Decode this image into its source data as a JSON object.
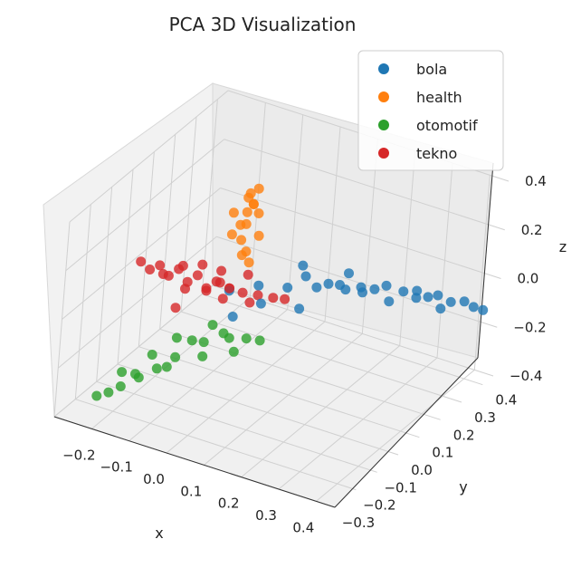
{
  "chart_data": {
    "type": "scatter",
    "projection": "3d",
    "title": "PCA 3D Visualization",
    "xlabel": "x",
    "ylabel": "y",
    "zlabel": "z",
    "xlim": [
      -0.3,
      0.45
    ],
    "ylim": [
      -0.3,
      0.45
    ],
    "zlim": [
      -0.4,
      0.4
    ],
    "x_ticks": [
      "−0.2",
      "−0.1",
      "0.0",
      "0.1",
      "0.2",
      "0.3",
      "0.4"
    ],
    "y_ticks": [
      "−0.3",
      "−0.2",
      "−0.1",
      "0.0",
      "0.1",
      "0.2",
      "0.3",
      "0.4"
    ],
    "z_ticks": [
      "−0.4",
      "−0.2",
      "0.0",
      "0.2",
      "0.4"
    ],
    "grid": true,
    "legend": "top-right",
    "series": [
      {
        "name": "bola",
        "color": "#1f77b4",
        "points": [
          [
            -0.05,
            0.05,
            -0.01
          ],
          [
            0.0,
            0.1,
            0.0
          ],
          [
            0.05,
            0.15,
            -0.02
          ],
          [
            0.1,
            0.2,
            -0.03
          ],
          [
            0.15,
            0.25,
            -0.05
          ],
          [
            0.2,
            0.3,
            -0.06
          ],
          [
            0.25,
            0.35,
            -0.08
          ],
          [
            0.3,
            0.38,
            -0.1
          ],
          [
            0.35,
            0.4,
            -0.11
          ],
          [
            0.4,
            0.42,
            -0.12
          ],
          [
            0.42,
            0.43,
            -0.13
          ],
          [
            0.38,
            0.41,
            -0.1
          ],
          [
            0.32,
            0.39,
            -0.09
          ],
          [
            0.28,
            0.36,
            -0.07
          ],
          [
            0.22,
            0.32,
            -0.05
          ],
          [
            0.18,
            0.27,
            -0.04
          ],
          [
            0.12,
            0.22,
            -0.02
          ],
          [
            0.08,
            0.18,
            0.02
          ],
          [
            0.06,
            0.2,
            0.04
          ],
          [
            0.14,
            0.28,
            -0.01
          ],
          [
            0.24,
            0.3,
            -0.09
          ],
          [
            0.34,
            0.37,
            -0.12
          ],
          [
            0.02,
            0.08,
            -0.05
          ],
          [
            -0.02,
            0.02,
            -0.08
          ],
          [
            0.1,
            0.12,
            -0.06
          ],
          [
            0.2,
            0.24,
            -0.03
          ],
          [
            0.3,
            0.32,
            -0.06
          ],
          [
            0.16,
            0.2,
            0.01
          ]
        ]
      },
      {
        "name": "health",
        "color": "#ff7f0e",
        "points": [
          [
            -0.05,
            0.1,
            0.1
          ],
          [
            -0.06,
            0.11,
            0.15
          ],
          [
            -0.07,
            0.12,
            0.2
          ],
          [
            -0.06,
            0.13,
            0.25
          ],
          [
            -0.05,
            0.14,
            0.28
          ],
          [
            -0.04,
            0.12,
            0.3
          ],
          [
            -0.03,
            0.13,
            0.26
          ],
          [
            -0.05,
            0.11,
            0.22
          ],
          [
            -0.08,
            0.1,
            0.17
          ],
          [
            -0.04,
            0.1,
            0.12
          ],
          [
            -0.06,
            0.14,
            0.32
          ],
          [
            -0.07,
            0.15,
            0.29
          ],
          [
            -0.02,
            0.12,
            0.18
          ],
          [
            -0.09,
            0.12,
            0.24
          ],
          [
            -0.05,
            0.16,
            0.33
          ],
          [
            -0.03,
            0.1,
            0.08
          ]
        ]
      },
      {
        "name": "otomotif",
        "color": "#2ca02c",
        "points": [
          [
            -0.05,
            -0.02,
            -0.1
          ],
          [
            -0.08,
            -0.06,
            -0.15
          ],
          [
            -0.1,
            -0.1,
            -0.2
          ],
          [
            -0.13,
            -0.13,
            -0.24
          ],
          [
            -0.16,
            -0.16,
            -0.27
          ],
          [
            -0.19,
            -0.19,
            -0.3
          ],
          [
            -0.21,
            -0.21,
            -0.32
          ],
          [
            -0.23,
            -0.23,
            -0.33
          ],
          [
            -0.02,
            -0.02,
            -0.12
          ],
          [
            0.02,
            0.02,
            -0.15
          ],
          [
            0.04,
            0.05,
            -0.17
          ],
          [
            0.0,
            0.0,
            -0.2
          ],
          [
            -0.06,
            -0.04,
            -0.22
          ],
          [
            -0.12,
            -0.1,
            -0.25
          ],
          [
            -0.18,
            -0.14,
            -0.28
          ],
          [
            -0.15,
            -0.12,
            -0.2
          ],
          [
            -0.11,
            -0.08,
            -0.14
          ],
          [
            -0.2,
            -0.17,
            -0.26
          ],
          [
            -0.03,
            0.03,
            -0.18
          ],
          [
            -0.08,
            0.0,
            -0.2
          ]
        ]
      },
      {
        "name": "tekno",
        "color": "#d62728",
        "points": [
          [
            -0.05,
            0.05,
            0.0
          ],
          [
            -0.08,
            0.04,
            0.02
          ],
          [
            -0.12,
            0.02,
            0.04
          ],
          [
            -0.16,
            0.0,
            0.06
          ],
          [
            -0.2,
            -0.02,
            0.07
          ],
          [
            -0.24,
            -0.04,
            0.08
          ],
          [
            -0.22,
            -0.03,
            0.05
          ],
          [
            -0.18,
            -0.01,
            0.03
          ],
          [
            -0.14,
            0.01,
            0.01
          ],
          [
            -0.1,
            0.03,
            -0.01
          ],
          [
            -0.06,
            0.07,
            -0.02
          ],
          [
            -0.03,
            0.08,
            -0.03
          ],
          [
            0.0,
            0.1,
            -0.04
          ],
          [
            0.03,
            0.12,
            -0.05
          ],
          [
            0.05,
            0.14,
            -0.06
          ],
          [
            -0.02,
            0.1,
            -0.08
          ],
          [
            -0.07,
            0.06,
            -0.06
          ],
          [
            -0.11,
            0.05,
            -0.04
          ],
          [
            -0.15,
            0.02,
            -0.03
          ],
          [
            -0.04,
            0.12,
            0.01
          ],
          [
            -0.09,
            0.08,
            0.03
          ],
          [
            -0.13,
            0.06,
            0.05
          ],
          [
            -0.17,
            0.04,
            0.04
          ],
          [
            -0.2,
            0.0,
            0.02
          ],
          [
            -0.14,
            -0.04,
            -0.06
          ],
          [
            -0.06,
            0.02,
            0.04
          ]
        ]
      }
    ]
  }
}
